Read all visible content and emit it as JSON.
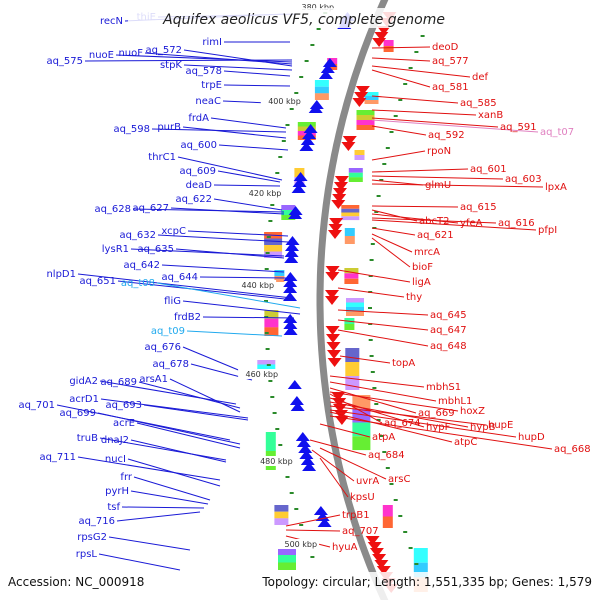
{
  "header": {
    "title": "Aquifex aeolicus VF5, complete genome",
    "accession": "Accession: NC_000918",
    "summary": "Topology: circular; Length: 1,551,335 bp; Genes: 1,579"
  },
  "colors": {
    "left_label": "#1a1ad6",
    "right_label": "#e01010",
    "trna_label": "#22aaee",
    "misc_label": "#e080c0",
    "backbone": "#8a8a8a",
    "tick": "#2a8a2a"
  },
  "ruler": {
    "ticks": [
      "380 kbp",
      "400 kbp",
      "420 kbp",
      "440 kbp",
      "460 kbp",
      "480 kbp",
      "500 kbp"
    ]
  },
  "left_labels": [
    {
      "text": "recN",
      "kind": "gene"
    },
    {
      "text": "thiE",
      "kind": "gene"
    },
    {
      "text": "rimI",
      "kind": "gene"
    },
    {
      "text": "aq_575",
      "kind": "gene"
    },
    {
      "text": "nuoE",
      "kind": "gene"
    },
    {
      "text": "nuoF",
      "kind": "gene"
    },
    {
      "text": "aq_572",
      "kind": "gene"
    },
    {
      "text": "stpK",
      "kind": "gene"
    },
    {
      "text": "aq_578",
      "kind": "gene"
    },
    {
      "text": "trpE",
      "kind": "gene"
    },
    {
      "text": "neaC",
      "kind": "gene"
    },
    {
      "text": "frdA",
      "kind": "gene"
    },
    {
      "text": "aq_598",
      "kind": "gene"
    },
    {
      "text": "purB",
      "kind": "gene"
    },
    {
      "text": "aq_600",
      "kind": "gene"
    },
    {
      "text": "thrC1",
      "kind": "gene"
    },
    {
      "text": "aq_609",
      "kind": "gene"
    },
    {
      "text": "deaD",
      "kind": "gene"
    },
    {
      "text": "aq_622",
      "kind": "gene"
    },
    {
      "text": "aq_628",
      "kind": "gene"
    },
    {
      "text": "aq_627",
      "kind": "gene"
    },
    {
      "text": "aq_632",
      "kind": "gene"
    },
    {
      "text": "xcpC",
      "kind": "gene"
    },
    {
      "text": "lysR1",
      "kind": "gene"
    },
    {
      "text": "aq_635",
      "kind": "gene"
    },
    {
      "text": "aq_642",
      "kind": "gene"
    },
    {
      "text": "nlpD1",
      "kind": "gene"
    },
    {
      "text": "aq_644",
      "kind": "gene"
    },
    {
      "text": "aq_651",
      "kind": "gene"
    },
    {
      "text": "aq_t08",
      "kind": "trna"
    },
    {
      "text": "fliG",
      "kind": "gene"
    },
    {
      "text": "frdB2",
      "kind": "gene"
    },
    {
      "text": "aq_t09",
      "kind": "trna"
    },
    {
      "text": "aq_676",
      "kind": "gene"
    },
    {
      "text": "aq_678",
      "kind": "gene"
    },
    {
      "text": "gidA2",
      "kind": "gene"
    },
    {
      "text": "aq_689",
      "kind": "gene"
    },
    {
      "text": "arsA1",
      "kind": "gene"
    },
    {
      "text": "acrD1",
      "kind": "gene"
    },
    {
      "text": "aq_693",
      "kind": "gene"
    },
    {
      "text": "aq_701",
      "kind": "gene"
    },
    {
      "text": "aq_699",
      "kind": "gene"
    },
    {
      "text": "acrE",
      "kind": "gene"
    },
    {
      "text": "truB",
      "kind": "gene"
    },
    {
      "text": "dnaJ2",
      "kind": "gene"
    },
    {
      "text": "aq_711",
      "kind": "gene"
    },
    {
      "text": "nucI",
      "kind": "gene"
    },
    {
      "text": "frr",
      "kind": "gene"
    },
    {
      "text": "pyrH",
      "kind": "gene"
    },
    {
      "text": "tsf",
      "kind": "gene"
    },
    {
      "text": "aq_716",
      "kind": "gene"
    },
    {
      "text": "rpsG2",
      "kind": "gene"
    },
    {
      "text": "rpsL",
      "kind": "gene"
    }
  ],
  "right_labels": [
    {
      "text": "deoD",
      "kind": "gene"
    },
    {
      "text": "aq_577",
      "kind": "gene"
    },
    {
      "text": "def",
      "kind": "gene"
    },
    {
      "text": "aq_581",
      "kind": "gene"
    },
    {
      "text": "aq_585",
      "kind": "gene"
    },
    {
      "text": "xanB",
      "kind": "gene"
    },
    {
      "text": "aq_591",
      "kind": "gene"
    },
    {
      "text": "aq_t07",
      "kind": "misc"
    },
    {
      "text": "aq_592",
      "kind": "gene"
    },
    {
      "text": "rpoN",
      "kind": "gene"
    },
    {
      "text": "aq_601",
      "kind": "gene"
    },
    {
      "text": "aq_603",
      "kind": "gene"
    },
    {
      "text": "glmU",
      "kind": "gene"
    },
    {
      "text": "lpxA",
      "kind": "gene"
    },
    {
      "text": "aq_615",
      "kind": "gene"
    },
    {
      "text": "abcT2",
      "kind": "gene"
    },
    {
      "text": "yfeA",
      "kind": "gene"
    },
    {
      "text": "aq_616",
      "kind": "gene"
    },
    {
      "text": "pfpI",
      "kind": "gene"
    },
    {
      "text": "aq_621",
      "kind": "gene"
    },
    {
      "text": "mrcA",
      "kind": "gene"
    },
    {
      "text": "bioF",
      "kind": "gene"
    },
    {
      "text": "ligA",
      "kind": "gene"
    },
    {
      "text": "thy",
      "kind": "gene"
    },
    {
      "text": "aq_645",
      "kind": "gene"
    },
    {
      "text": "aq_647",
      "kind": "gene"
    },
    {
      "text": "aq_648",
      "kind": "gene"
    },
    {
      "text": "topA",
      "kind": "gene"
    },
    {
      "text": "mbhS1",
      "kind": "gene"
    },
    {
      "text": "mbhL1",
      "kind": "gene"
    },
    {
      "text": "aq_669",
      "kind": "gene"
    },
    {
      "text": "hoxZ",
      "kind": "gene"
    },
    {
      "text": "aq_674",
      "kind": "gene"
    },
    {
      "text": "hypF",
      "kind": "gene"
    },
    {
      "text": "hypB",
      "kind": "gene"
    },
    {
      "text": "hupE",
      "kind": "gene"
    },
    {
      "text": "hupD",
      "kind": "gene"
    },
    {
      "text": "atpA",
      "kind": "gene"
    },
    {
      "text": "atpC",
      "kind": "gene"
    },
    {
      "text": "aq_668",
      "kind": "gene"
    },
    {
      "text": "aq_684",
      "kind": "gene"
    },
    {
      "text": "uvrA",
      "kind": "gene"
    },
    {
      "text": "arsC",
      "kind": "gene"
    },
    {
      "text": "kpsU",
      "kind": "gene"
    },
    {
      "text": "trpB1",
      "kind": "gene"
    },
    {
      "text": "aq_707",
      "kind": "gene"
    },
    {
      "text": "hyuA",
      "kind": "gene"
    }
  ]
}
